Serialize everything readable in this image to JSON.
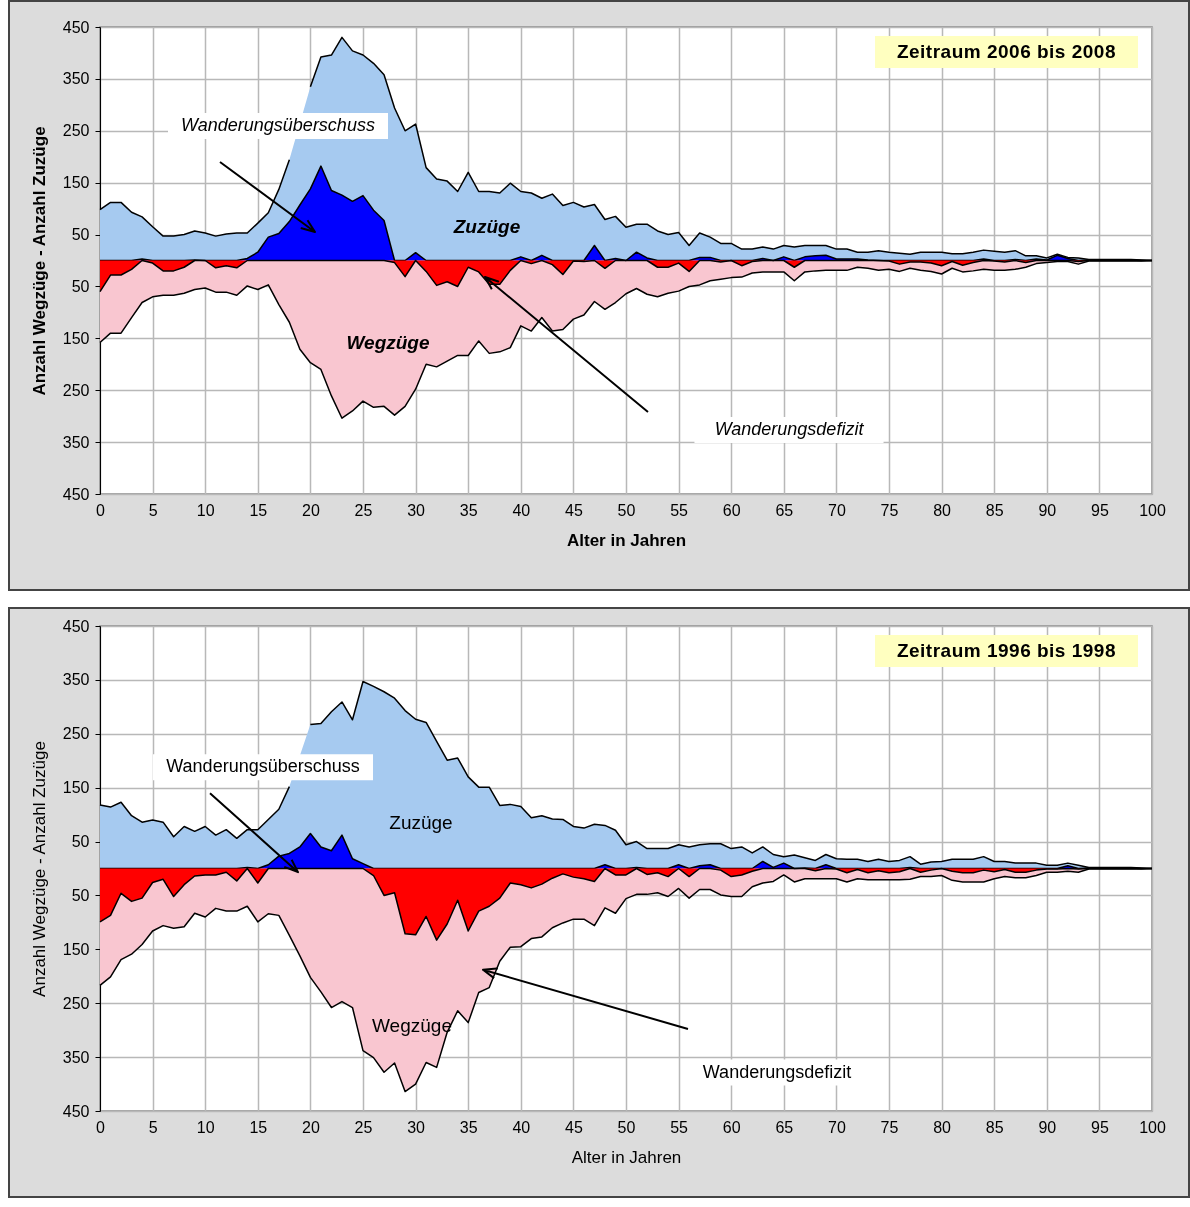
{
  "chart_data": [
    {
      "type": "area",
      "title": "Zeitraum 2006 bis 2008",
      "xlabel": "Alter in Jahren",
      "ylabel": "Anzahl Wegzüge   -   Anzahl Zuzüge",
      "x": [
        0,
        1,
        2,
        3,
        4,
        5,
        6,
        7,
        8,
        9,
        10,
        11,
        12,
        13,
        14,
        15,
        16,
        17,
        18,
        19,
        20,
        21,
        22,
        23,
        24,
        25,
        26,
        27,
        28,
        29,
        30,
        31,
        32,
        33,
        34,
        35,
        36,
        37,
        38,
        39,
        40,
        41,
        42,
        43,
        44,
        45,
        46,
        47,
        48,
        49,
        50,
        51,
        52,
        53,
        54,
        55,
        56,
        57,
        58,
        59,
        60,
        61,
        62,
        63,
        64,
        65,
        66,
        67,
        68,
        69,
        70,
        71,
        72,
        73,
        74,
        75,
        76,
        77,
        78,
        79,
        80,
        81,
        82,
        83,
        84,
        85,
        86,
        87,
        88,
        89,
        90,
        91,
        92,
        93,
        94,
        95,
        96,
        97,
        98,
        99,
        100
      ],
      "xlim": [
        0,
        100
      ],
      "xticks": [
        0,
        5,
        10,
        15,
        20,
        25,
        30,
        35,
        40,
        45,
        50,
        55,
        60,
        65,
        70,
        75,
        80,
        85,
        90,
        95,
        100
      ],
      "ylim": [
        -450,
        450
      ],
      "yticks": [
        {
          "value": -450,
          "label": "450"
        },
        {
          "value": -350,
          "label": "350"
        },
        {
          "value": -250,
          "label": "250"
        },
        {
          "value": -150,
          "label": "150"
        },
        {
          "value": -50,
          "label": "50"
        },
        50,
        150,
        250,
        350,
        450
      ],
      "grid": true,
      "series": [
        {
          "color": "#a6caf0",
          "values": [
            98,
            112,
            112,
            93,
            84,
            65,
            47,
            47,
            50,
            57,
            53,
            47,
            51,
            53,
            53,
            72,
            92,
            137,
            194,
            null,
            335,
            392,
            396,
            430,
            404,
            396,
            380,
            358,
            294,
            250,
            263,
            179,
            157,
            153,
            133,
            170,
            133,
            133,
            130,
            149,
            133,
            130,
            120,
            128,
            106,
            112,
            103,
            108,
            79,
            85,
            64,
            70,
            70,
            57,
            50,
            54,
            29,
            53,
            45,
            33,
            33,
            22,
            22,
            26,
            22,
            29,
            26,
            29,
            29,
            29,
            22,
            22,
            16,
            16,
            19,
            16,
            14,
            12,
            16,
            16,
            16,
            13,
            13,
            16,
            20,
            18,
            16,
            19,
            9,
            9,
            5,
            12,
            6,
            5,
            2,
            2,
            2,
            2,
            2,
            1,
            0
          ]
        },
        {
          "color": "#f9c6d0",
          "values": [
            -158,
            -140,
            -140,
            -110,
            -81,
            -70,
            -67,
            -67,
            -63,
            -56,
            -53,
            -61,
            -61,
            -67,
            -49,
            -56,
            -47,
            -85,
            -119,
            -171,
            -197,
            -210,
            -261,
            -304,
            -290,
            -271,
            -283,
            -281,
            -298,
            -281,
            -248,
            -200,
            -205,
            -194,
            -183,
            -183,
            -155,
            -179,
            -176,
            -168,
            -126,
            -136,
            -110,
            -136,
            -133,
            -113,
            -105,
            -79,
            -94,
            -81,
            -64,
            -54,
            -65,
            -70,
            -63,
            -59,
            -50,
            -47,
            -39,
            -36,
            -33,
            -32,
            -24,
            -22,
            -22,
            -22,
            -39,
            -22,
            -20,
            -19,
            -19,
            -19,
            -13,
            -15,
            -19,
            -17,
            -21,
            -15,
            -19,
            -21,
            -26,
            -15,
            -22,
            -20,
            -17,
            -19,
            -19,
            -17,
            -13,
            -6,
            -4,
            -2,
            -2,
            -7,
            -1,
            -1,
            -1,
            -1,
            -1,
            -1,
            0
          ]
        },
        {
          "color": "#0000ff",
          "values": [
            0,
            0,
            0,
            0,
            3,
            0,
            0,
            0,
            0,
            1,
            0,
            0,
            0,
            0,
            4,
            16,
            45,
            52,
            75,
            107,
            138,
            182,
            135,
            126,
            114,
            125,
            97,
            77,
            0,
            0,
            15,
            0,
            0,
            0,
            0,
            0,
            0,
            0,
            0,
            0,
            7,
            0,
            10,
            0,
            0,
            0,
            0,
            29,
            0,
            4,
            0,
            16,
            5,
            0,
            0,
            0,
            0,
            6,
            6,
            0,
            0,
            0,
            0,
            4,
            0,
            7,
            0,
            7,
            9,
            10,
            3,
            3,
            3,
            1,
            0,
            0,
            0,
            0,
            0,
            0,
            0,
            0,
            0,
            0,
            3,
            0,
            0,
            2,
            0,
            3,
            1,
            10,
            4,
            0,
            1,
            1,
            1,
            1,
            1,
            0,
            0
          ]
        },
        {
          "color": "#ff0000",
          "values": [
            -60,
            -28,
            -28,
            -17,
            0,
            -5,
            -20,
            -20,
            -13,
            0,
            0,
            -14,
            -10,
            -14,
            0,
            0,
            0,
            0,
            0,
            0,
            0,
            0,
            0,
            0,
            0,
            0,
            0,
            0,
            -4,
            -31,
            0,
            -21,
            -48,
            -41,
            -50,
            -13,
            -22,
            -46,
            -46,
            -19,
            0,
            -6,
            0,
            -8,
            -27,
            -1,
            -2,
            0,
            -15,
            0,
            0,
            0,
            0,
            -13,
            -13,
            -5,
            -21,
            0,
            0,
            -3,
            0,
            -10,
            -2,
            0,
            0,
            0,
            -13,
            0,
            0,
            0,
            0,
            0,
            0,
            0,
            0,
            -1,
            -7,
            -3,
            -3,
            -5,
            -10,
            -2,
            -9,
            -4,
            0,
            -1,
            -3,
            0,
            -4,
            0,
            0,
            0,
            0,
            -2,
            0,
            0,
            0,
            0,
            0,
            0,
            0
          ]
        }
      ],
      "annotations": [
        "Zuzüge",
        "Wegzüge",
        "Wanderungsüberschuss",
        "Wanderungsdefizit"
      ]
    },
    {
      "type": "area",
      "title": "Zeitraum 1996 bis 1998",
      "xlabel": "Alter in Jahren",
      "ylabel": "Anzahl Wegzüge   -   Anzahl Zuzüge",
      "x": [
        0,
        1,
        2,
        3,
        4,
        5,
        6,
        7,
        8,
        9,
        10,
        11,
        12,
        13,
        14,
        15,
        16,
        17,
        18,
        19,
        20,
        21,
        22,
        23,
        24,
        25,
        26,
        27,
        28,
        29,
        30,
        31,
        32,
        33,
        34,
        35,
        36,
        37,
        38,
        39,
        40,
        41,
        42,
        43,
        44,
        45,
        46,
        47,
        48,
        49,
        50,
        51,
        52,
        53,
        54,
        55,
        56,
        57,
        58,
        59,
        60,
        61,
        62,
        63,
        64,
        65,
        66,
        67,
        68,
        69,
        70,
        71,
        72,
        73,
        74,
        75,
        76,
        77,
        78,
        79,
        80,
        81,
        82,
        83,
        84,
        85,
        86,
        87,
        88,
        89,
        90,
        91,
        92,
        93,
        94,
        95,
        96,
        97,
        98,
        99,
        100
      ],
      "xlim": [
        0,
        100
      ],
      "xticks": [
        0,
        5,
        10,
        15,
        20,
        25,
        30,
        35,
        40,
        45,
        50,
        55,
        60,
        65,
        70,
        75,
        80,
        85,
        90,
        95,
        100
      ],
      "ylim": [
        -450,
        450
      ],
      "yticks": [
        {
          "value": -450,
          "label": "450"
        },
        {
          "value": -350,
          "label": "350"
        },
        {
          "value": -250,
          "label": "250"
        },
        {
          "value": -150,
          "label": "150"
        },
        {
          "value": -50,
          "label": "50"
        },
        50,
        150,
        250,
        350,
        450
      ],
      "grid": true,
      "series": [
        {
          "color": "#a6caf0",
          "values": [
            118,
            114,
            123,
            98,
            86,
            90,
            86,
            59,
            78,
            69,
            78,
            62,
            72,
            56,
            72,
            72,
            91,
            110,
            152,
            null,
            267,
            269,
            291,
            309,
            276,
            347,
            338,
            328,
            316,
            293,
            277,
            271,
            236,
            201,
            205,
            170,
            151,
            151,
            117,
            119,
            115,
            94,
            98,
            92,
            91,
            78,
            75,
            82,
            80,
            71,
            44,
            50,
            37,
            37,
            37,
            44,
            40,
            44,
            46,
            46,
            37,
            40,
            29,
            40,
            26,
            22,
            25,
            20,
            15,
            26,
            18,
            17,
            17,
            13,
            17,
            13,
            15,
            22,
            8,
            12,
            13,
            17,
            17,
            17,
            22,
            13,
            13,
            10,
            10,
            10,
            6,
            6,
            10,
            6,
            2,
            2,
            2,
            2,
            2,
            1,
            0
          ]
        },
        {
          "color": "#f9c6d0",
          "values": [
            -217,
            -201,
            -169,
            -159,
            -141,
            -116,
            -106,
            -111,
            -108,
            -83,
            -90,
            -74,
            -79,
            -79,
            -70,
            -99,
            -84,
            -87,
            -124,
            -162,
            -202,
            -229,
            -258,
            -247,
            -258,
            -338,
            -351,
            -378,
            -361,
            -414,
            -400,
            -360,
            -369,
            -304,
            -264,
            -286,
            -230,
            -221,
            -172,
            -146,
            -145,
            -130,
            -127,
            -110,
            -101,
            -94,
            -94,
            -106,
            -73,
            -83,
            -56,
            -48,
            -48,
            -45,
            -52,
            -37,
            -55,
            -39,
            -39,
            -49,
            -52,
            -52,
            -34,
            -27,
            -24,
            -12,
            -25,
            -19,
            -19,
            -19,
            -19,
            -25,
            -19,
            -21,
            -21,
            -21,
            -21,
            -20,
            -15,
            -15,
            -13,
            -22,
            -25,
            -25,
            -25,
            -19,
            -15,
            -17,
            -17,
            -13,
            -7,
            -7,
            -5,
            -7,
            -1,
            -1,
            -1,
            -1,
            -1,
            -1,
            0
          ]
        },
        {
          "color": "#0000ff",
          "values": [
            0,
            0,
            0,
            0,
            0,
            0,
            0,
            0,
            0,
            0,
            0,
            0,
            0,
            0,
            2,
            0,
            7,
            23,
            28,
            40,
            65,
            40,
            33,
            62,
            18,
            9,
            0,
            0,
            0,
            0,
            0,
            0,
            0,
            0,
            0,
            0,
            0,
            0,
            0,
            0,
            0,
            0,
            0,
            0,
            0,
            0,
            0,
            0,
            7,
            0,
            0,
            2,
            0,
            0,
            0,
            7,
            0,
            5,
            7,
            0,
            0,
            0,
            0,
            13,
            2,
            10,
            0,
            1,
            0,
            7,
            0,
            0,
            0,
            0,
            0,
            0,
            0,
            2,
            0,
            0,
            0,
            0,
            0,
            0,
            0,
            0,
            0,
            0,
            0,
            0,
            0,
            0,
            5,
            0,
            1,
            1,
            1,
            1,
            1,
            0,
            0
          ]
        },
        {
          "color": "#ff0000",
          "values": [
            -99,
            -87,
            -46,
            -61,
            -55,
            -26,
            -20,
            -52,
            -30,
            -14,
            -12,
            -12,
            -7,
            -23,
            0,
            -27,
            0,
            0,
            0,
            0,
            0,
            0,
            0,
            0,
            0,
            0,
            -13,
            -50,
            -45,
            -121,
            -123,
            -89,
            -133,
            -103,
            -59,
            -116,
            -79,
            -70,
            -55,
            -27,
            -30,
            -36,
            -29,
            -18,
            -10,
            -16,
            -19,
            -24,
            0,
            -12,
            -12,
            0,
            -11,
            -8,
            -15,
            0,
            -15,
            0,
            0,
            -3,
            -15,
            -12,
            -5,
            0,
            0,
            0,
            0,
            0,
            -4,
            0,
            -1,
            -8,
            -2,
            -8,
            -4,
            -8,
            -6,
            0,
            -7,
            -3,
            0,
            -5,
            -8,
            -8,
            -3,
            -6,
            -2,
            -7,
            -7,
            -3,
            -1,
            -1,
            0,
            -1,
            0,
            0,
            0,
            0,
            0,
            0,
            0
          ]
        }
      ],
      "annotations": [
        "Zuzüge",
        "Wegzüge",
        "Wanderungsüberschuss",
        "Wanderungsdefizit"
      ]
    }
  ]
}
